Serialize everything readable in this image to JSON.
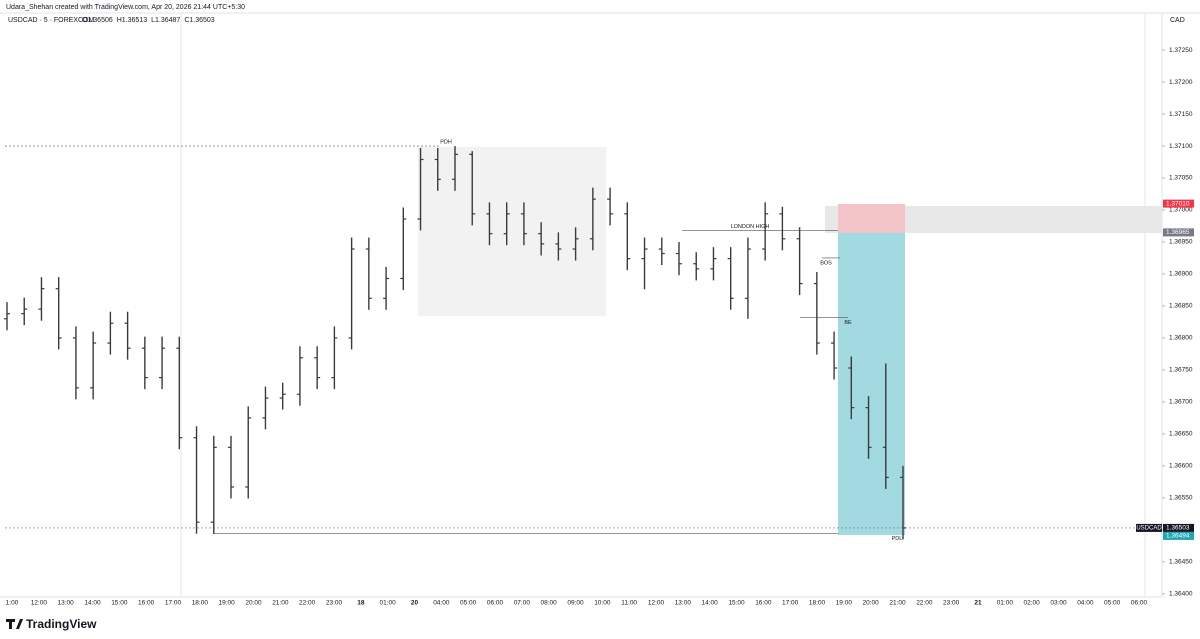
{
  "header": {
    "credit": "Udara_Shehan created with TradingView.com, Apr 20, 2026 21:44 UTC+5:30",
    "brand": "TradingView"
  },
  "chart_data": {
    "type": "ohlc",
    "title": "USDCAD · 5 · FOREXCOM",
    "ohlc_labels": [
      "O1.36506",
      "H1.36513",
      "L1.36487",
      "C1.36503"
    ],
    "currency": "CAD",
    "color": "#3a3a3a",
    "open": [
      1.3683,
      1.36838,
      1.36845,
      1.36877,
      1.368,
      1.36722,
      1.36792,
      1.36823,
      1.36784,
      1.36738,
      1.36784,
      1.36644,
      1.36512,
      1.36629,
      1.36567,
      1.36675,
      1.36706,
      1.36712,
      1.36769,
      1.36738,
      1.368,
      1.36939,
      1.36862,
      1.36893,
      1.36986,
      1.37079,
      1.37048,
      1.37087,
      1.36994,
      1.36963,
      1.36994,
      1.36963,
      1.36947,
      1.36939,
      1.36955,
      1.37017,
      1.36994,
      1.36924,
      1.36939,
      1.36932,
      1.36916,
      1.36908,
      1.36924,
      1.36862,
      1.36939,
      1.36994,
      1.36955,
      1.36885,
      1.36792,
      1.36753,
      1.36691,
      1.36629,
      1.36582
    ],
    "high": [
      1.36856,
      1.36863,
      1.36895,
      1.36895,
      1.36818,
      1.3681,
      1.36841,
      1.36841,
      1.36802,
      1.36802,
      1.36802,
      1.36662,
      1.36647,
      1.36647,
      1.36693,
      1.36724,
      1.3673,
      1.36787,
      1.36787,
      1.36818,
      1.36957,
      1.36957,
      1.36911,
      1.37004,
      1.37097,
      1.37097,
      1.371,
      1.37092,
      1.37012,
      1.37012,
      1.37012,
      1.36981,
      1.36965,
      1.36973,
      1.37035,
      1.37035,
      1.37012,
      1.36957,
      1.36957,
      1.3695,
      1.36934,
      1.36942,
      1.36942,
      1.36957,
      1.37012,
      1.37005,
      1.36973,
      1.36903,
      1.3681,
      1.36771,
      1.36709,
      1.3676,
      1.366
    ],
    "low": [
      1.36812,
      1.3682,
      1.36827,
      1.36782,
      1.36704,
      1.36704,
      1.36774,
      1.36766,
      1.3672,
      1.3672,
      1.36626,
      1.36494,
      1.36494,
      1.36549,
      1.36549,
      1.36657,
      1.36688,
      1.36694,
      1.3672,
      1.3672,
      1.36782,
      1.36844,
      1.36844,
      1.36875,
      1.36968,
      1.3703,
      1.3703,
      1.36976,
      1.36945,
      1.36945,
      1.36945,
      1.36929,
      1.36921,
      1.36921,
      1.36937,
      1.36976,
      1.36906,
      1.36876,
      1.36914,
      1.36898,
      1.3689,
      1.3689,
      1.36844,
      1.3683,
      1.36921,
      1.36937,
      1.36867,
      1.36774,
      1.36735,
      1.36673,
      1.36611,
      1.36564,
      1.36485
    ],
    "close": [
      1.36838,
      1.36845,
      1.36877,
      1.368,
      1.36722,
      1.36792,
      1.36823,
      1.36784,
      1.36738,
      1.36784,
      1.36644,
      1.36512,
      1.36629,
      1.36567,
      1.36675,
      1.36706,
      1.36712,
      1.36769,
      1.36738,
      1.368,
      1.36939,
      1.36862,
      1.36893,
      1.36986,
      1.37079,
      1.37048,
      1.37087,
      1.36994,
      1.36963,
      1.36994,
      1.36963,
      1.36947,
      1.36939,
      1.36955,
      1.37017,
      1.36994,
      1.36924,
      1.36939,
      1.36932,
      1.36916,
      1.36908,
      1.36924,
      1.36862,
      1.36939,
      1.36994,
      1.36955,
      1.36885,
      1.36792,
      1.36753,
      1.36691,
      1.36629,
      1.36582,
      1.36503
    ],
    "ylim": [
      1.36395,
      1.37308
    ],
    "yticks": [
      {
        "value": 1.3725,
        "label": "1.37250"
      },
      {
        "value": 1.372,
        "label": "1.37200"
      },
      {
        "value": 1.3715,
        "label": "1.37150"
      },
      {
        "value": 1.371,
        "label": "1.37100"
      },
      {
        "value": 1.3705,
        "label": "1.37050"
      },
      {
        "value": 1.37,
        "label": "1.37000"
      },
      {
        "value": 1.3695,
        "label": "1.36950"
      },
      {
        "value": 1.369,
        "label": "1.36900"
      },
      {
        "value": 1.3685,
        "label": "1.36850"
      },
      {
        "value": 1.368,
        "label": "1.36800"
      },
      {
        "value": 1.3675,
        "label": "1.36750"
      },
      {
        "value": 1.367,
        "label": "1.36700"
      },
      {
        "value": 1.3665,
        "label": "1.36650"
      },
      {
        "value": 1.366,
        "label": "1.36600"
      },
      {
        "value": 1.3655,
        "label": "1.36550"
      },
      {
        "value": 1.365,
        "label": "1.36500"
      },
      {
        "value": 1.3645,
        "label": "1.36450"
      },
      {
        "value": 1.364,
        "label": "1.36400"
      }
    ],
    "time_labels": [
      "1:00",
      "12:00",
      "13:00",
      "14:00",
      "15:00",
      "16:00",
      "17:00",
      "18:00",
      "19:00",
      "20:00",
      "21:00",
      "22:00",
      "23:00",
      "18",
      "01:00",
      "20",
      "04:00",
      "05:00",
      "06:00",
      "07:00",
      "08:00",
      "09:00",
      "10:00",
      "11:00",
      "12:00",
      "13:00",
      "14:00",
      "15:00",
      "16:00",
      "17:00",
      "18:00",
      "19:00",
      "20:00",
      "21:00",
      "22:00",
      "23:00",
      "21",
      "01:00",
      "02:00",
      "03:00",
      "04:00",
      "05:00",
      "06:00"
    ],
    "levels": [
      {
        "text": "PDH",
        "value": 1.371
      },
      {
        "text": "LONDON HIGH",
        "value": 1.36968
      },
      {
        "text": "BOS",
        "value": 1.36925
      },
      {
        "text": "BE",
        "value": 1.36832
      },
      {
        "text": "PDL",
        "value": 1.36494
      }
    ],
    "symbol_tag": "USDCAD",
    "price_labels": [
      {
        "value": 1.3701,
        "label": "1.37010",
        "color": "#f23645"
      },
      {
        "value": 1.36965,
        "label": "1.36965",
        "color": "#787b86"
      },
      {
        "value": 1.36503,
        "label": "1.36503",
        "color": "#131722"
      },
      {
        "value": 1.36494,
        "label": "1.36494",
        "color": "#22a6b3"
      }
    ]
  }
}
